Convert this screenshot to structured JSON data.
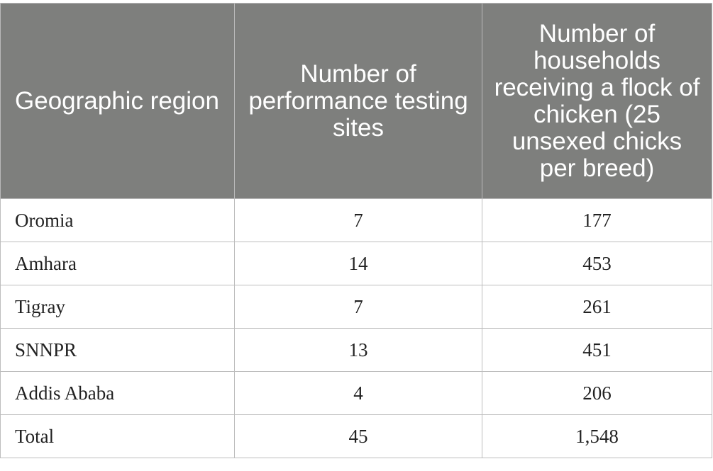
{
  "table": {
    "headers": [
      "Geographic region",
      "Number of performance testing sites",
      "Number of households receiving a flock of chicken (25 unsexed chicks per breed)"
    ],
    "rows": [
      [
        "Oromia",
        "7",
        "177"
      ],
      [
        "Amhara",
        "14",
        "453"
      ],
      [
        "Tigray",
        "7",
        "261"
      ],
      [
        "SNNPR",
        "13",
        "451"
      ],
      [
        "Addis Ababa",
        "4",
        "206"
      ],
      [
        "Total",
        "45",
        "1,548"
      ]
    ]
  },
  "colors": {
    "header_bg": "#7e7f7d",
    "header_text": "#ffffff",
    "border": "#bdbdbd"
  }
}
